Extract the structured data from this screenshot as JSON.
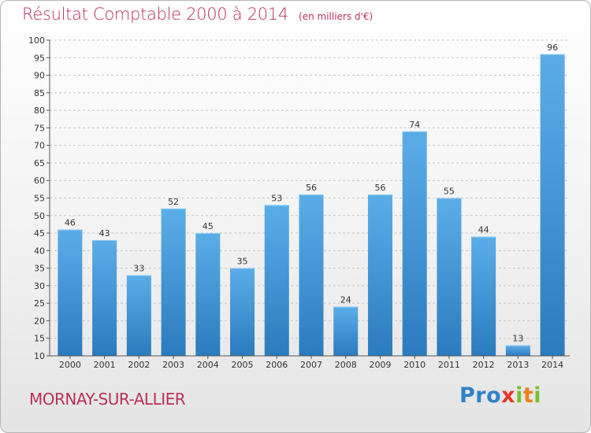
{
  "title": "Résultat Comptable 2000 à 2014",
  "subtitle": "(en milliers d'€)",
  "commune": "MORNAY-SUR-ALLIER",
  "logo": {
    "parts": [
      "Pro",
      "x",
      "i",
      "t",
      "i"
    ],
    "colors": [
      "#2e82c8",
      "#e8372a",
      "#7bbf2b",
      "#ef7f1a",
      "#7bbf2b"
    ]
  },
  "colors": {
    "accent": "#b8325a",
    "bar_light": "#5aaee8",
    "bar_dark": "#2b7bbf"
  },
  "chart_data": {
    "type": "bar",
    "categories": [
      "2000",
      "2001",
      "2002",
      "2003",
      "2004",
      "2005",
      "2006",
      "2007",
      "2008",
      "2009",
      "2010",
      "2011",
      "2012",
      "2013",
      "2014"
    ],
    "values": [
      46,
      43,
      33,
      52,
      45,
      35,
      53,
      56,
      24,
      56,
      74,
      55,
      44,
      13,
      96
    ],
    "ylim": [
      10,
      100
    ],
    "yticks": [
      10,
      15,
      20,
      25,
      30,
      35,
      40,
      45,
      50,
      55,
      60,
      65,
      70,
      75,
      80,
      85,
      90,
      95,
      100
    ],
    "grid": true,
    "legend": "none"
  }
}
